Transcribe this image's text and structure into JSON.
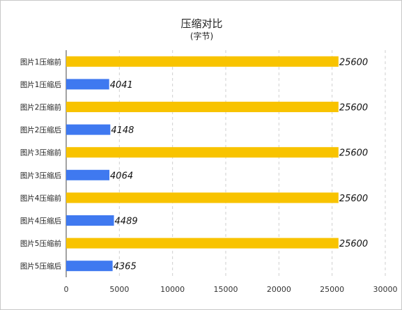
{
  "chart_data": {
    "type": "bar",
    "orientation": "horizontal",
    "title": "压缩对比",
    "subtitle": "(字节)",
    "categories": [
      "图片1压缩前",
      "图片1压缩后",
      "图片2压缩前",
      "图片2压缩后",
      "图片3压缩前",
      "图片3压缩后",
      "图片4压缩前",
      "图片4压缩后",
      "图片5压缩前",
      "图片5压缩后"
    ],
    "values": [
      25600,
      4041,
      25600,
      4148,
      25600,
      4064,
      25600,
      4489,
      25600,
      4365
    ],
    "data_labels": [
      "25600",
      "4041",
      "25600",
      "4148",
      "25600",
      "4064",
      "25600",
      "4489",
      "25600",
      "4365"
    ],
    "bar_colors": [
      "#f8c300",
      "#3f79f0",
      "#f8c300",
      "#3f79f0",
      "#f8c300",
      "#3f79f0",
      "#f8c300",
      "#3f79f0",
      "#f8c300",
      "#3f79f0"
    ],
    "xlim": [
      0,
      30000
    ],
    "x_ticks": [
      "0",
      "5000",
      "10000",
      "15000",
      "20000",
      "25000",
      "30000"
    ],
    "grid": "vertical dashed"
  }
}
